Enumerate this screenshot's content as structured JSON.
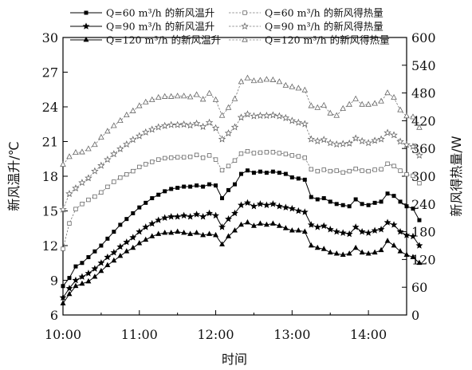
{
  "chart_data": {
    "type": "line",
    "xlabel": "时间",
    "ylabel_left": "新风温升/℃",
    "ylabel_right": "新风得热量/W",
    "x_tick_labels": [
      "10:00",
      "11:00",
      "12:00",
      "13:00",
      "14:00"
    ],
    "x_ticks_min": [
      0,
      60,
      120,
      180,
      240
    ],
    "x_range_min": [
      0,
      270
    ],
    "y_left_range": [
      6,
      30
    ],
    "y_left_ticks": [
      6,
      9,
      12,
      15,
      18,
      21,
      24,
      27,
      30
    ],
    "y_right_range": [
      0,
      600
    ],
    "y_right_ticks": [
      0,
      60,
      120,
      180,
      240,
      300,
      360,
      420,
      480,
      540,
      600
    ],
    "x_step_min": 5,
    "legend": [
      {
        "label": "Q=60 m³/h 的新风温升",
        "series": 0
      },
      {
        "label": "Q=60 m³/h 的新风得热量",
        "series": 3
      },
      {
        "label": "Q=90 m³/h 的新风温升",
        "series": 1
      },
      {
        "label": "Q=90 m³/h 的新风得热量",
        "series": 4
      },
      {
        "label": "Q=120 m³/h 的新风温升",
        "series": 2
      },
      {
        "label": "Q=120 m³/h 的新风得热量",
        "series": 5
      }
    ],
    "series": [
      {
        "name": "Q=60 m³/h 的新风温升",
        "axis": "left",
        "marker": "square-filled",
        "dash": "solid",
        "values": [
          8.5,
          9.2,
          10.2,
          10.5,
          11.0,
          11.5,
          12.0,
          12.6,
          13.2,
          13.8,
          14.3,
          14.8,
          15.3,
          15.7,
          16.1,
          16.4,
          16.7,
          16.9,
          17.0,
          17.1,
          17.1,
          17.2,
          17.1,
          17.3,
          17.2,
          16.1,
          16.8,
          17.3,
          18.2,
          18.5,
          18.3,
          18.4,
          18.3,
          18.4,
          18.3,
          18.2,
          17.9,
          17.8,
          17.7,
          16.2,
          16.0,
          16.1,
          15.8,
          15.6,
          15.5,
          15.4,
          16.0,
          15.6,
          15.5,
          15.7,
          15.8,
          16.5,
          16.3,
          15.8,
          15.4,
          15.2,
          14.2
        ]
      },
      {
        "name": "Q=90 m³/h 的新风温升",
        "axis": "left",
        "marker": "star-filled",
        "dash": "solid",
        "values": [
          7.5,
          8.3,
          9.0,
          9.3,
          9.6,
          10.0,
          10.5,
          11.0,
          11.4,
          11.9,
          12.3,
          12.7,
          13.2,
          13.6,
          13.9,
          14.2,
          14.4,
          14.5,
          14.5,
          14.6,
          14.5,
          14.7,
          14.5,
          14.8,
          14.6,
          13.6,
          14.3,
          14.8,
          15.5,
          15.7,
          15.4,
          15.6,
          15.5,
          15.6,
          15.4,
          15.3,
          15.2,
          15.0,
          14.9,
          13.8,
          13.6,
          13.7,
          13.4,
          13.2,
          13.1,
          13.0,
          13.6,
          13.2,
          13.1,
          13.3,
          13.4,
          14.0,
          13.8,
          13.2,
          12.9,
          12.8,
          12.0
        ]
      },
      {
        "name": "Q=120 m³/h 的新风温升",
        "axis": "left",
        "marker": "triangle-filled",
        "dash": "solid",
        "values": [
          7.0,
          7.8,
          8.5,
          8.7,
          8.9,
          9.3,
          9.8,
          10.3,
          10.7,
          11.1,
          11.5,
          11.8,
          12.2,
          12.5,
          12.8,
          13.0,
          13.1,
          13.1,
          13.2,
          13.1,
          13.0,
          13.1,
          12.9,
          13.0,
          12.9,
          12.1,
          12.8,
          13.3,
          13.8,
          14.0,
          13.7,
          13.9,
          13.8,
          13.9,
          13.7,
          13.5,
          13.3,
          13.3,
          13.2,
          12.0,
          11.8,
          11.7,
          11.4,
          11.3,
          11.2,
          11.3,
          11.8,
          11.4,
          11.3,
          11.4,
          11.6,
          12.4,
          12.0,
          11.5,
          11.2,
          11.0,
          10.5
        ]
      },
      {
        "name": "Q=60 m³/h 的新风得热量",
        "axis": "right",
        "marker": "square-open",
        "dash": "dashed",
        "values": [
          143,
          198,
          229,
          240,
          249,
          256,
          265,
          277,
          288,
          297,
          304,
          311,
          320,
          326,
          331,
          336,
          339,
          340,
          341,
          341,
          342,
          346,
          340,
          345,
          336,
          313,
          322,
          334,
          349,
          354,
          350,
          351,
          352,
          352,
          350,
          348,
          345,
          343,
          340,
          315,
          311,
          314,
          311,
          312,
          308,
          311,
          316,
          312,
          311,
          314,
          315,
          327,
          322,
          312,
          304,
          301,
          285
        ]
      },
      {
        "name": "Q=90 m³/h 的新风得热量",
        "axis": "right",
        "marker": "star-open",
        "dash": "dashed",
        "values": [
          228,
          262,
          274,
          286,
          296,
          311,
          323,
          336,
          348,
          359,
          369,
          379,
          387,
          395,
          401,
          406,
          409,
          411,
          411,
          412,
          410,
          414,
          407,
          416,
          404,
          380,
          393,
          406,
          427,
          434,
          430,
          431,
          431,
          432,
          430,
          426,
          420,
          416,
          413,
          380,
          376,
          379,
          372,
          369,
          370,
          371,
          382,
          376,
          372,
          377,
          380,
          394,
          389,
          375,
          368,
          364,
          345
        ]
      },
      {
        "name": "Q=120 m³/h 的新风得热量",
        "axis": "right",
        "marker": "triangle-open",
        "dash": "dashed",
        "values": [
          325,
          342,
          351,
          352,
          359,
          368,
          384,
          397,
          409,
          420,
          432,
          441,
          452,
          460,
          465,
          470,
          472,
          472,
          473,
          473,
          471,
          476,
          466,
          479,
          465,
          431,
          448,
          467,
          504,
          512,
          506,
          507,
          509,
          508,
          504,
          496,
          493,
          490,
          486,
          452,
          448,
          453,
          436,
          431,
          446,
          455,
          467,
          455,
          455,
          457,
          462,
          480,
          470,
          443,
          430,
          428,
          405
        ]
      }
    ]
  }
}
